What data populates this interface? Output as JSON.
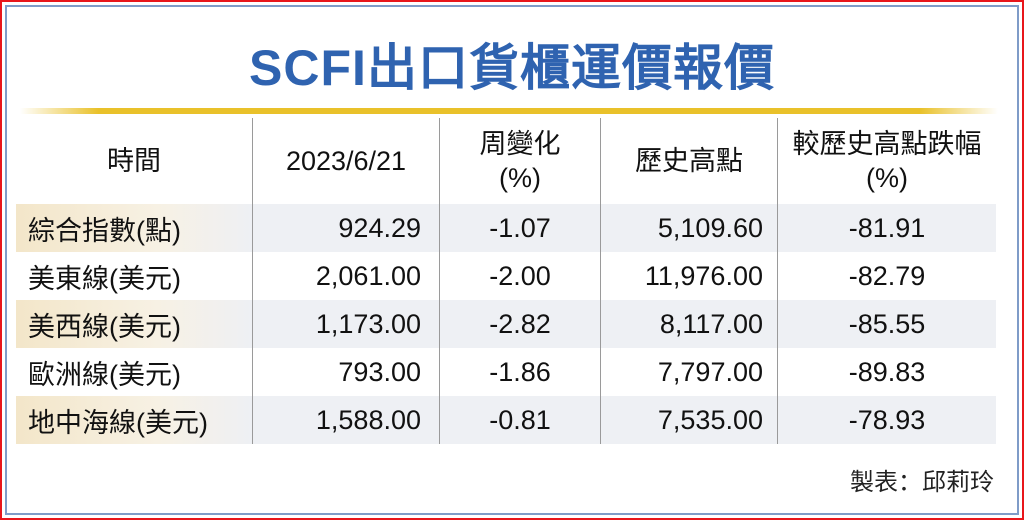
{
  "title": "SCFI出口貨櫃運價報價",
  "colors": {
    "title": "#2f63b0",
    "rule": "#e9c12a",
    "frame_outer": "#e8161b",
    "frame_inner": "#7f9cc8"
  },
  "table": {
    "headers": [
      {
        "line1": "時間",
        "line2": ""
      },
      {
        "line1": "2023/6/21",
        "line2": ""
      },
      {
        "line1": "周變化",
        "line2": "(%)"
      },
      {
        "line1": "歷史高點",
        "line2": ""
      },
      {
        "line1": "較歷史高點跌幅",
        "line2": "(%)"
      }
    ],
    "rows": [
      [
        "綜合指數(點)",
        "924.29",
        "-1.07",
        "5,109.60",
        "-81.91"
      ],
      [
        "美東線(美元)",
        "2,061.00",
        "-2.00",
        "11,976.00",
        "-82.79"
      ],
      [
        "美西線(美元)",
        "1,173.00",
        "-2.82",
        "8,117.00",
        "-85.55"
      ],
      [
        "歐洲線(美元)",
        "793.00",
        "-1.86",
        "7,797.00",
        "-89.83"
      ],
      [
        "地中海線(美元)",
        "1,588.00",
        "-0.81",
        "7,535.00",
        "-78.93"
      ]
    ]
  },
  "credit": "製表：邱莉玲"
}
